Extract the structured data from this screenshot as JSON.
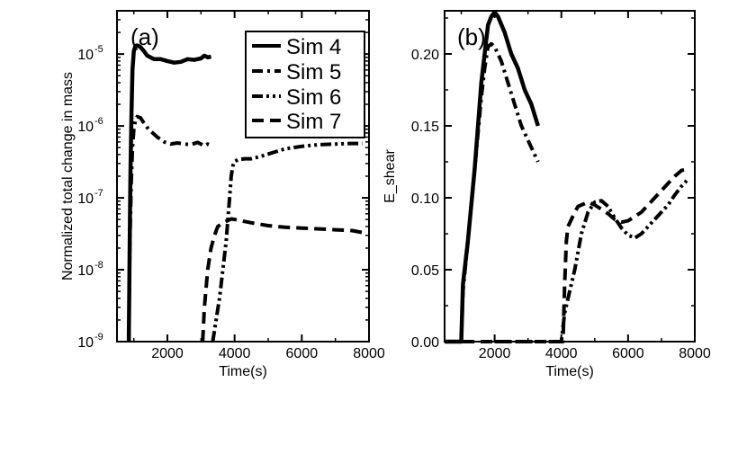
{
  "chart_data": [
    {
      "type": "line",
      "panel_label": "(a)",
      "xlabel": "Time(s)",
      "ylabel": "Normalized total change in mass",
      "xlim": [
        500,
        8000
      ],
      "xscale": "linear",
      "yscale": "log",
      "ylim": [
        1e-09,
        4e-05
      ],
      "x_ticks": [
        2000,
        4000,
        6000,
        8000
      ],
      "x_tick_labels": [
        "2000",
        "4000",
        "6000",
        "8000"
      ],
      "y_ticks": [
        1e-09,
        1e-08,
        1e-07,
        1e-06,
        1e-05
      ],
      "y_tick_bases": [
        "10",
        "10",
        "10",
        "10",
        "10"
      ],
      "y_tick_exps": [
        "-9",
        "-8",
        "-7",
        "-6",
        "-5"
      ],
      "legend": {
        "placement": "top-right",
        "entries": [
          "Sim 4",
          "Sim 5",
          "Sim 6",
          "Sim 7"
        ]
      },
      "series": [
        {
          "name": "Sim 4",
          "style": "solid",
          "x": [
            850,
            880,
            900,
            930,
            960,
            1000,
            1050,
            1100,
            1200,
            1300,
            1400,
            1600,
            1800,
            2000,
            2200,
            2400,
            2600,
            2800,
            3000,
            3100,
            3200,
            3300
          ],
          "y": [
            1e-09,
            3e-08,
            2e-07,
            1.5e-06,
            6e-06,
            1.1e-05,
            1.3e-05,
            1.32e-05,
            1.25e-05,
            1.1e-05,
            9.5e-06,
            8.5e-06,
            8.5e-06,
            8e-06,
            7.6e-06,
            7.8e-06,
            8.5e-06,
            8.3e-06,
            8.7e-06,
            9.5e-06,
            9e-06,
            9.2e-06
          ]
        },
        {
          "name": "Sim 5",
          "style": "dash-dot",
          "x": [
            850,
            880,
            920,
            960,
            1000,
            1050,
            1100,
            1200,
            1300,
            1400,
            1500,
            1700,
            1900,
            2100,
            2300,
            2500,
            2700,
            2900,
            3100,
            3200,
            3300
          ],
          "y": [
            1e-09,
            2e-08,
            1.5e-07,
            5e-07,
            9e-07,
            1.2e-06,
            1.35e-06,
            1.3e-06,
            1.1e-06,
            9.5e-07,
            8.5e-07,
            7e-07,
            6e-07,
            5.6e-07,
            5.8e-07,
            5.6e-07,
            5.5e-07,
            5.9e-07,
            5.3e-07,
            5.6e-07,
            5.4e-07
          ]
        },
        {
          "name": "Sim 6",
          "style": "dash-dot-dot",
          "x": [
            3350,
            3450,
            3550,
            3650,
            3750,
            3800,
            3850,
            3900,
            3950,
            4000,
            4100,
            4300,
            4500,
            4800,
            5100,
            5500,
            6000,
            6500,
            7000,
            7500,
            7800
          ],
          "y": [
            1e-09,
            2e-09,
            4e-09,
            1e-08,
            2.5e-08,
            5e-08,
            1e-07,
            2e-07,
            2.8e-07,
            3.2e-07,
            3.4e-07,
            3.5e-07,
            3.5e-07,
            3.8e-07,
            4.2e-07,
            4.8e-07,
            5.2e-07,
            5.5e-07,
            5.6e-07,
            5.7e-07,
            5.7e-07
          ]
        },
        {
          "name": "Sim 7",
          "style": "dashed",
          "x": [
            3050,
            3100,
            3200,
            3300,
            3400,
            3500,
            3700,
            3900,
            4000,
            4200,
            4500,
            5000,
            5500,
            6000,
            6500,
            7000,
            7500,
            7800
          ],
          "y": [
            1e-09,
            3e-09,
            1e-08,
            2e-08,
            3e-08,
            4e-08,
            4.6e-08,
            5.1e-08,
            5e-08,
            4.8e-08,
            4.5e-08,
            4.1e-08,
            3.9e-08,
            3.8e-08,
            3.7e-08,
            3.6e-08,
            3.5e-08,
            3.3e-08
          ]
        }
      ]
    },
    {
      "type": "line",
      "panel_label": "(b)",
      "xlabel": "Time(s)",
      "ylabel": "E_shear",
      "xlim": [
        500,
        8000
      ],
      "xscale": "linear",
      "yscale": "linear",
      "ylim": [
        0,
        0.23
      ],
      "x_ticks": [
        2000,
        4000,
        6000,
        8000
      ],
      "x_tick_labels": [
        "2000",
        "4000",
        "6000",
        "8000"
      ],
      "y_ticks": [
        0,
        0.05,
        0.1,
        0.15,
        0.2
      ],
      "y_tick_labels": [
        "0.00",
        "0.05",
        "0.10",
        "0.15",
        "0.20"
      ],
      "series": [
        {
          "name": "Sim 4",
          "style": "solid",
          "x": [
            500,
            1000,
            1050,
            1200,
            1400,
            1600,
            1800,
            1900,
            2000,
            2100,
            2300,
            2500,
            2700,
            2900,
            3100,
            3300
          ],
          "y": [
            0,
            0,
            0.04,
            0.07,
            0.12,
            0.18,
            0.22,
            0.226,
            0.229,
            0.226,
            0.215,
            0.2,
            0.19,
            0.175,
            0.165,
            0.15
          ]
        },
        {
          "name": "Sim 5",
          "style": "dash-dot",
          "x": [
            1000,
            1050,
            1200,
            1400,
            1600,
            1700,
            1800,
            1900,
            2000,
            2200,
            2400,
            2600,
            2800,
            3000,
            3200,
            3300
          ],
          "y": [
            0,
            0.035,
            0.07,
            0.12,
            0.17,
            0.19,
            0.205,
            0.207,
            0.205,
            0.195,
            0.18,
            0.165,
            0.15,
            0.14,
            0.13,
            0.125
          ]
        },
        {
          "name": "Sim 6",
          "style": "dash-dot-dot",
          "x": [
            2000,
            3000,
            4000,
            4100,
            4200,
            4400,
            4600,
            4800,
            5000,
            5200,
            5400,
            5600,
            5800,
            6000,
            6200,
            6400,
            6600,
            6800,
            7000,
            7200,
            7400,
            7600,
            7800
          ],
          "y": [
            0,
            0,
            0,
            0.02,
            0.03,
            0.05,
            0.075,
            0.09,
            0.097,
            0.098,
            0.094,
            0.086,
            0.079,
            0.074,
            0.072,
            0.075,
            0.08,
            0.085,
            0.09,
            0.095,
            0.102,
            0.108,
            0.113
          ]
        },
        {
          "name": "Sim 7",
          "style": "dashed",
          "x": [
            500,
            1000,
            2000,
            3000,
            4050,
            4100,
            4150,
            4200,
            4300,
            4400,
            4500,
            4600,
            4800,
            5000,
            5200,
            5400,
            5600,
            5800,
            6000,
            6200,
            6400,
            6600,
            6800,
            7000,
            7200,
            7400,
            7600,
            7800
          ],
          "y": [
            0,
            0,
            0,
            0,
            0,
            0.04,
            0.07,
            0.08,
            0.085,
            0.09,
            0.094,
            0.095,
            0.097,
            0.095,
            0.092,
            0.089,
            0.085,
            0.083,
            0.084,
            0.087,
            0.09,
            0.095,
            0.1,
            0.105,
            0.11,
            0.115,
            0.119,
            0.12
          ]
        }
      ]
    }
  ]
}
